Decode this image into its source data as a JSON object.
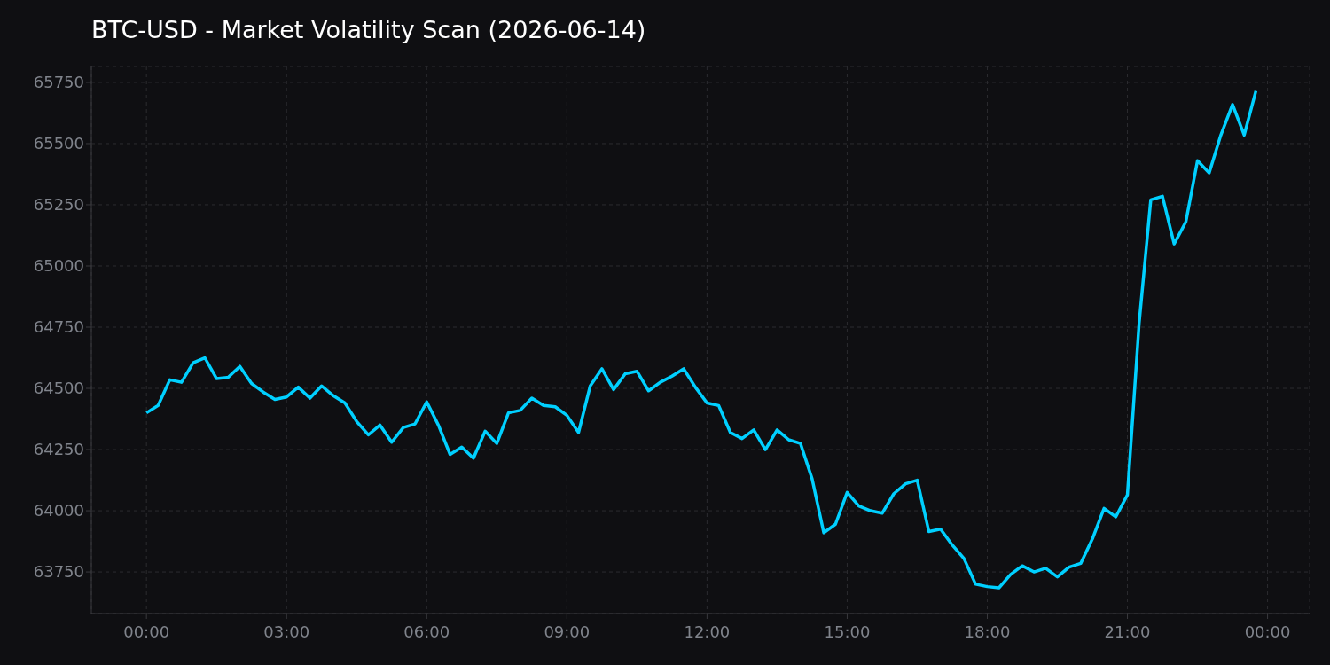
{
  "chart_data": {
    "type": "line",
    "title": "BTC-USD - Market Volatility Scan (2026-06-14)",
    "x": [
      0,
      0.25,
      0.5,
      0.75,
      1,
      1.25,
      1.5,
      1.75,
      2,
      2.25,
      2.5,
      2.75,
      3,
      3.25,
      3.5,
      3.75,
      4,
      4.25,
      4.5,
      4.75,
      5,
      5.25,
      5.5,
      5.75,
      6,
      6.25,
      6.5,
      6.75,
      7,
      7.25,
      7.5,
      7.75,
      8,
      8.25,
      8.5,
      8.75,
      9,
      9.25,
      9.5,
      9.75,
      10,
      10.25,
      10.5,
      10.75,
      11,
      11.25,
      11.5,
      11.75,
      12,
      12.25,
      12.5,
      12.75,
      13,
      13.25,
      13.5,
      13.75,
      14,
      14.25,
      14.5,
      14.75,
      15,
      15.25,
      15.5,
      15.75,
      16,
      16.25,
      16.5,
      16.75,
      17,
      17.25,
      17.5,
      17.75,
      18,
      18.25,
      18.5,
      18.75,
      19,
      19.25,
      19.5,
      19.75,
      20,
      20.25,
      20.5,
      20.75,
      21,
      21.25,
      21.5,
      21.75,
      22,
      22.25,
      22.5,
      22.75,
      23,
      23.25,
      23.5,
      23.75
    ],
    "series": [
      {
        "color": "#00d0ff",
        "values": [
          64400,
          64430,
          64535,
          64525,
          64605,
          64625,
          64540,
          64545,
          64590,
          64520,
          64485,
          64455,
          64465,
          64505,
          64460,
          64510,
          64470,
          64440,
          64365,
          64310,
          64350,
          64280,
          64340,
          64355,
          64445,
          64350,
          64230,
          64260,
          64215,
          64325,
          64275,
          64400,
          64410,
          64460,
          64430,
          64425,
          64390,
          64320,
          64510,
          64580,
          64495,
          64560,
          64570,
          64490,
          64525,
          64550,
          64580,
          64505,
          64440,
          64430,
          64320,
          64295,
          64330,
          64250,
          64330,
          64290,
          64275,
          64130,
          63910,
          63945,
          64075,
          64020,
          64000,
          63990,
          64070,
          64110,
          64125,
          63915,
          63925,
          63860,
          63805,
          63700,
          63690,
          63685,
          63740,
          63775,
          63750,
          63765,
          63730,
          63770,
          63785,
          63885,
          64010,
          63975,
          64065,
          64765,
          65270,
          65285,
          65090,
          65180,
          65430,
          65380,
          65535,
          65660,
          65535,
          65715
        ]
      }
    ],
    "xlim": [
      -1.18,
      24.9
    ],
    "xticks": [
      {
        "value": 0,
        "label": "00:00"
      },
      {
        "value": 3,
        "label": "03:00"
      },
      {
        "value": 6,
        "label": "06:00"
      },
      {
        "value": 9,
        "label": "09:00"
      },
      {
        "value": 12,
        "label": "12:00"
      },
      {
        "value": 15,
        "label": "15:00"
      },
      {
        "value": 18,
        "label": "18:00"
      },
      {
        "value": 21,
        "label": "21:00"
      },
      {
        "value": 24,
        "label": "00:00"
      }
    ],
    "ylim": [
      63580,
      65815
    ],
    "yticks": [
      63750,
      64000,
      64250,
      64500,
      64750,
      65000,
      65250,
      65500,
      65750
    ],
    "grid": true,
    "legend": false,
    "marker": "none",
    "line_style": "solid"
  }
}
